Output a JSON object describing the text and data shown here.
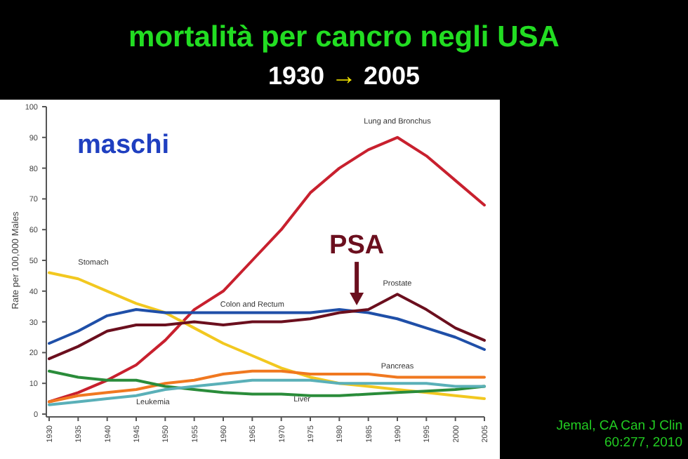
{
  "chart_data": {
    "type": "line",
    "title": "mortalità per cancro negli USA",
    "subtitle": "1930 → 2005",
    "ylabel": "Rate per 100,000 Males",
    "x": [
      1930,
      1935,
      1940,
      1945,
      1950,
      1955,
      1960,
      1965,
      1970,
      1975,
      1980,
      1985,
      1990,
      1995,
      2000,
      2005
    ],
    "series": [
      {
        "name": "Lung and Bronchus",
        "color": "#c8202e",
        "values": [
          4,
          7,
          11,
          16,
          24,
          34,
          40,
          50,
          60,
          72,
          80,
          86,
          90,
          84,
          76,
          68
        ]
      },
      {
        "name": "Stomach",
        "color": "#f2c820",
        "values": [
          46,
          44,
          40,
          36,
          33,
          28,
          23,
          19,
          15,
          12,
          10,
          9,
          8,
          7,
          6,
          5
        ]
      },
      {
        "name": "Colon and Rectum",
        "color": "#1f4fa8",
        "values": [
          23,
          27,
          32,
          34,
          33,
          33,
          33,
          33,
          33,
          33,
          34,
          33,
          31,
          28,
          25,
          21
        ]
      },
      {
        "name": "Prostate",
        "color": "#6b0f1e",
        "values": [
          18,
          22,
          27,
          29,
          29,
          30,
          29,
          30,
          30,
          31,
          33,
          34,
          39,
          34,
          28,
          24
        ]
      },
      {
        "name": "Pancreas",
        "color": "#f07820",
        "values": [
          4,
          6,
          7,
          8,
          10,
          11,
          13,
          14,
          14,
          13,
          13,
          13,
          12,
          12,
          12,
          12
        ]
      },
      {
        "name": "Liver",
        "color": "#2a8c3a",
        "values": [
          14,
          12,
          11,
          11,
          9,
          8,
          7,
          6.5,
          6.5,
          6,
          6,
          6.5,
          7,
          7.5,
          8,
          9
        ]
      },
      {
        "name": "Leukemia",
        "color": "#5ab0b8",
        "values": [
          3,
          4,
          5,
          6,
          8,
          9,
          10,
          11,
          11,
          11,
          10,
          10,
          10,
          10,
          9,
          9
        ]
      }
    ],
    "xlim": [
      1930,
      2005
    ],
    "xticks": [
      1930,
      1935,
      1940,
      1945,
      1950,
      1955,
      1960,
      1965,
      1970,
      1975,
      1980,
      1985,
      1990,
      1995,
      2000,
      2005
    ],
    "ylim": [
      0,
      100
    ],
    "yticks": [
      0,
      10,
      20,
      30,
      40,
      50,
      60,
      70,
      80,
      90,
      100
    ],
    "grid": false,
    "marker": "none",
    "line_style": "solid",
    "annotations": [
      "maschi",
      {
        "text": "PSA",
        "x": 1983,
        "y": 34
      },
      "Jemal, CA Can J Clin 60:277, 2010"
    ]
  }
}
